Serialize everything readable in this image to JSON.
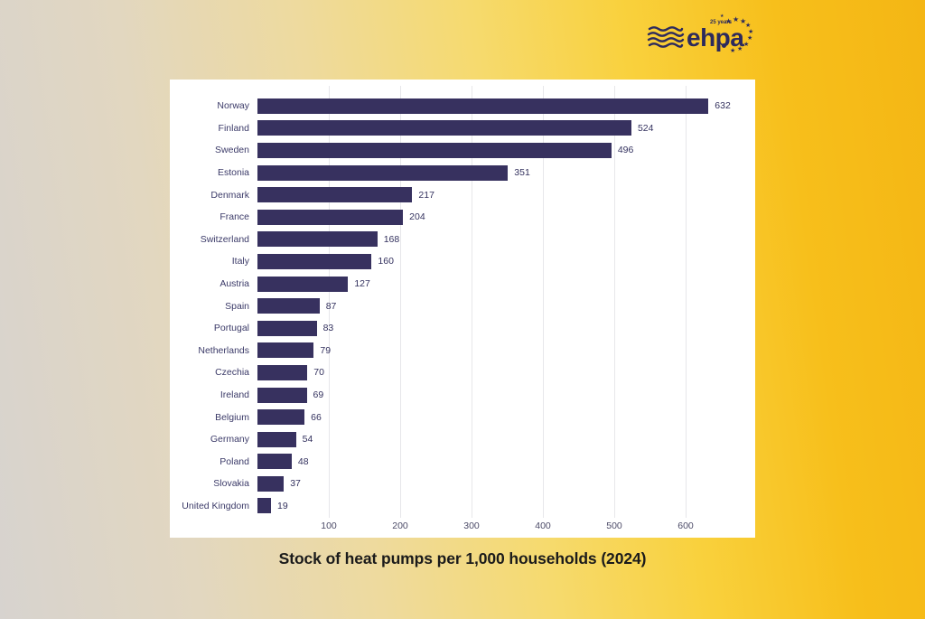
{
  "logo": {
    "brand": "ehpa",
    "anniversary": "25 years",
    "color": "#2d2a5c"
  },
  "chart_data": {
    "type": "bar",
    "orientation": "horizontal",
    "title": "Stock of heat pumps per 1,000 households (2024)",
    "categories": [
      "Norway",
      "Finland",
      "Sweden",
      "Estonia",
      "Denmark",
      "France",
      "Switzerland",
      "Italy",
      "Austria",
      "Spain",
      "Portugal",
      "Netherlands",
      "Czechia",
      "Ireland",
      "Belgium",
      "Germany",
      "Poland",
      "Slovakia",
      "United Kingdom"
    ],
    "values": [
      632,
      524,
      496,
      351,
      217,
      204,
      168,
      160,
      127,
      87,
      83,
      79,
      70,
      69,
      66,
      54,
      48,
      37,
      19
    ],
    "xlabel": "",
    "ylabel": "",
    "xlim": [
      0,
      680
    ],
    "xticks": [
      100,
      200,
      300,
      400,
      500,
      600
    ],
    "grid": true,
    "legend": "none",
    "bar_color": "#37315f",
    "background": "#ffffff"
  },
  "colors": {
    "bg_left": "#d7d3cf",
    "bg_right": "#f4b614",
    "card": "#ffffff",
    "gridline": "#e7e7ea",
    "navy": "#2d2a5c"
  }
}
